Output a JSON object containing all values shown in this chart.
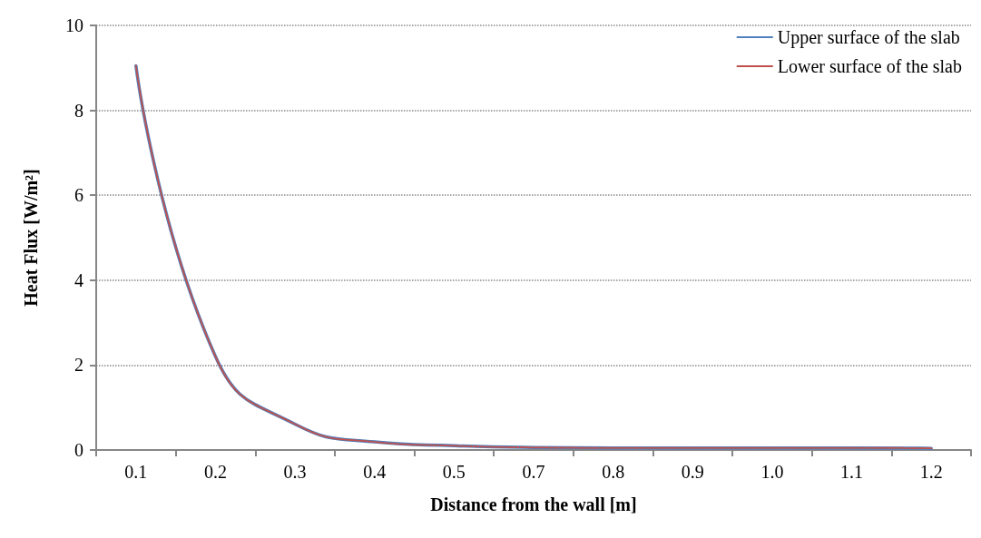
{
  "chart_data": {
    "type": "line",
    "xlabel": "Distance from the wall [m]",
    "ylabel": "Heat Flux [W/m²]",
    "categories": [
      "0.1",
      "0.2",
      "0.3",
      "0.4",
      "0.5",
      "0.7",
      "0.8",
      "0.9",
      "1.0",
      "1.1",
      "1.2"
    ],
    "series": [
      {
        "name": "Upper surface of the slab",
        "color": "#4f81bd",
        "line_style": "solid",
        "values": [
          9.05,
          2.2,
          0.61,
          0.19,
          0.1,
          0.06,
          0.05,
          0.05,
          0.05,
          0.05,
          0.04
        ]
      },
      {
        "name": "Lower surface of the slab",
        "color": "#c0504d",
        "line_style": "dotted",
        "values": [
          9.05,
          2.2,
          0.61,
          0.19,
          0.1,
          0.06,
          0.05,
          0.05,
          0.05,
          0.05,
          0.04
        ]
      }
    ],
    "ylim": [
      0,
      10
    ],
    "yticks": [
      0,
      2,
      4,
      6,
      8,
      10
    ],
    "grid": "y",
    "legend": "top right",
    "marker": "none"
  }
}
